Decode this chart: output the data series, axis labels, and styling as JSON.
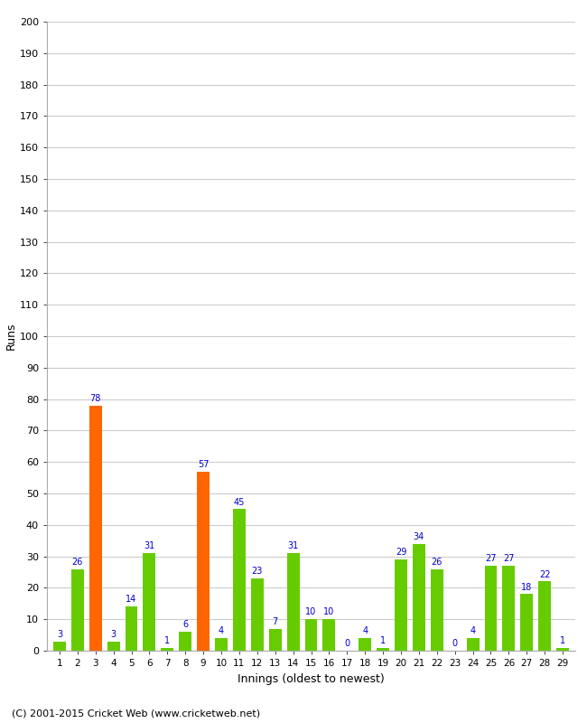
{
  "innings": [
    1,
    2,
    3,
    4,
    5,
    6,
    7,
    8,
    9,
    10,
    11,
    12,
    13,
    14,
    15,
    16,
    17,
    18,
    19,
    20,
    21,
    22,
    23,
    24,
    25,
    26,
    27,
    28,
    29
  ],
  "values": [
    3,
    26,
    78,
    3,
    14,
    31,
    1,
    6,
    57,
    4,
    45,
    23,
    7,
    31,
    10,
    10,
    0,
    4,
    1,
    29,
    34,
    26,
    0,
    4,
    27,
    27,
    18,
    22,
    1
  ],
  "colors": [
    "#66cc00",
    "#66cc00",
    "#ff6600",
    "#66cc00",
    "#66cc00",
    "#66cc00",
    "#66cc00",
    "#66cc00",
    "#ff6600",
    "#66cc00",
    "#66cc00",
    "#66cc00",
    "#66cc00",
    "#66cc00",
    "#66cc00",
    "#66cc00",
    "#66cc00",
    "#66cc00",
    "#66cc00",
    "#66cc00",
    "#66cc00",
    "#66cc00",
    "#66cc00",
    "#66cc00",
    "#66cc00",
    "#66cc00",
    "#66cc00",
    "#66cc00",
    "#66cc00"
  ],
  "xlabel": "Innings (oldest to newest)",
  "ylabel": "Runs",
  "ylim": [
    0,
    200
  ],
  "yticks": [
    0,
    10,
    20,
    30,
    40,
    50,
    60,
    70,
    80,
    90,
    100,
    110,
    120,
    130,
    140,
    150,
    160,
    170,
    180,
    190,
    200
  ],
  "label_color": "#0000cc",
  "background_color": "#ffffff",
  "grid_color": "#cccccc",
  "footer": "(C) 2001-2015 Cricket Web (www.cricketweb.net)"
}
